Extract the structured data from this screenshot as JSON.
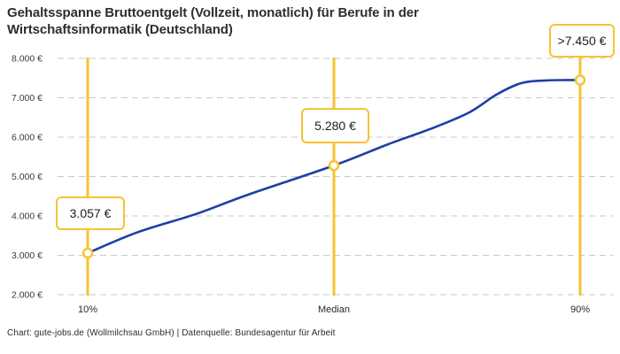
{
  "header": {
    "title_line1": "Gehaltsspanne Bruttoentgelt (Vollzeit, monatlich) für Berufe in der",
    "title_line2": "Wirtschaftsinformatik (Deutschland)"
  },
  "footer": {
    "credit": "Chart: gute-jobs.de (Wollmilchsau GmbH) | Datenquelle: Bundesagentur für Arbeit"
  },
  "colors": {
    "line_blue": "#1F3DA8",
    "accent_yellow": "#F7C331",
    "grid_gray": "#C9C9C9",
    "axis_text": "#3b3b3b",
    "label_text": "#1d1d1f"
  },
  "chart_data": {
    "type": "line",
    "title": "Gehaltsspanne Bruttoentgelt (Vollzeit, monatlich) für Berufe in der Wirtschaftsinformatik (Deutschland)",
    "xlabel": "",
    "ylabel": "",
    "currency": "EUR",
    "ylim": [
      2000,
      8000
    ],
    "grid": "horizontal dashed",
    "legend": "none",
    "categories": [
      "10%",
      "Median",
      "90%"
    ],
    "points": [
      {
        "category": "10%",
        "value": 3057,
        "label": "3.057 €"
      },
      {
        "category": "Median",
        "value": 5280,
        "label": "5.280 €"
      },
      {
        "category": "90%",
        "value": 7450,
        "label": ">7.450 €"
      }
    ],
    "y_ticks": [
      {
        "value": 8000,
        "label": "8.000 €"
      },
      {
        "value": 7000,
        "label": "7.000 €"
      },
      {
        "value": 6000,
        "label": "6.000 €"
      },
      {
        "value": 5000,
        "label": "5.000 €"
      },
      {
        "value": 4000,
        "label": "4.000 €"
      },
      {
        "value": 3000,
        "label": "3.000 €"
      },
      {
        "value": 2000,
        "label": "2.000 €"
      }
    ],
    "curve_samples": [
      {
        "pos": 0.0,
        "value": 3057
      },
      {
        "pos": 0.1,
        "value": 3580
      },
      {
        "pos": 0.22,
        "value": 4050
      },
      {
        "pos": 0.33,
        "value": 4560
      },
      {
        "pos": 0.5,
        "value": 5280
      },
      {
        "pos": 0.61,
        "value": 5820
      },
      {
        "pos": 0.7,
        "value": 6230
      },
      {
        "pos": 0.775,
        "value": 6630
      },
      {
        "pos": 0.83,
        "value": 7080
      },
      {
        "pos": 0.88,
        "value": 7370
      },
      {
        "pos": 0.93,
        "value": 7440
      },
      {
        "pos": 1.0,
        "value": 7450
      }
    ]
  }
}
